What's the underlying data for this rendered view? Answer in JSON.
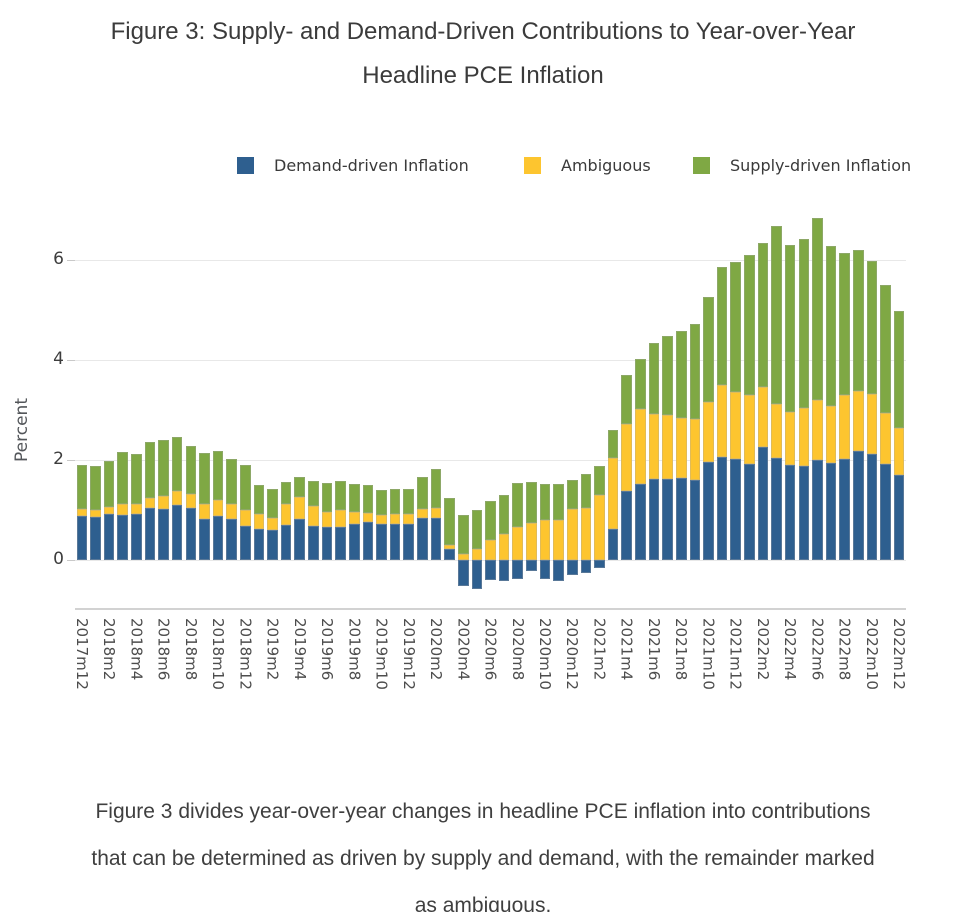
{
  "page": {
    "title": {
      "line1": "Figure 3: Supply- and Demand-Driven Contributions to Year-over-Year",
      "line2": "Headline PCE Inflation"
    },
    "caption": {
      "line1": "Figure 3 divides year-over-year changes in headline PCE inflation into contributions",
      "line2": "that can be determined as driven by supply and demand, with the remainder marked",
      "line3": "as ambiguous."
    }
  },
  "chart_data": {
    "type": "bar",
    "stacked": true,
    "title": "Figure 3: Supply- and Demand-Driven Contributions to Year-over-Year Headline PCE Inflation",
    "xlabel": "",
    "ylabel": "Percent",
    "yticks": [
      0,
      2,
      4,
      6
    ],
    "ylim": [
      -1.1,
      7.2
    ],
    "grid": "horizontal",
    "legend_position": "top",
    "xtick_every": 2,
    "categories": [
      "2017m12",
      "2018m1",
      "2018m2",
      "2018m3",
      "2018m4",
      "2018m5",
      "2018m6",
      "2018m7",
      "2018m8",
      "2018m9",
      "2018m10",
      "2018m11",
      "2018m12",
      "2019m1",
      "2019m2",
      "2019m3",
      "2019m4",
      "2019m5",
      "2019m6",
      "2019m7",
      "2019m8",
      "2019m9",
      "2019m10",
      "2019m11",
      "2019m12",
      "2020m1",
      "2020m2",
      "2020m3",
      "2020m4",
      "2020m5",
      "2020m6",
      "2020m7",
      "2020m8",
      "2020m9",
      "2020m10",
      "2020m11",
      "2020m12",
      "2021m1",
      "2021m2",
      "2021m3",
      "2021m4",
      "2021m5",
      "2021m6",
      "2021m7",
      "2021m8",
      "2021m9",
      "2021m10",
      "2021m11",
      "2021m12",
      "2022m1",
      "2022m2",
      "2022m3",
      "2022m4",
      "2022m5",
      "2022m6",
      "2022m7",
      "2022m8",
      "2022m9",
      "2022m10",
      "2022m11",
      "2022m12"
    ],
    "series": [
      {
        "name": "Demand-driven Inflation",
        "color": "#2e5f8f",
        "values": [
          0.88,
          0.87,
          0.92,
          0.9,
          0.93,
          1.05,
          1.02,
          1.1,
          1.05,
          0.83,
          0.89,
          0.82,
          0.69,
          0.63,
          0.6,
          0.7,
          0.82,
          0.69,
          0.67,
          0.67,
          0.73,
          0.77,
          0.72,
          0.72,
          0.72,
          0.85,
          0.85,
          0.23,
          -0.52,
          -0.57,
          -0.4,
          -0.41,
          -0.37,
          -0.21,
          -0.37,
          -0.41,
          -0.3,
          -0.25,
          -0.15,
          0.63,
          1.39,
          1.53,
          1.63,
          1.62,
          1.65,
          1.6,
          1.97,
          2.07,
          2.03,
          1.93,
          2.27,
          2.05,
          1.91,
          1.89,
          2.0,
          1.95,
          2.03,
          2.18,
          2.13,
          1.93,
          1.71
        ]
      },
      {
        "name": "Ambiguous",
        "color": "#fdc52f",
        "values": [
          0.14,
          0.14,
          0.15,
          0.22,
          0.2,
          0.2,
          0.26,
          0.28,
          0.27,
          0.3,
          0.31,
          0.3,
          0.31,
          0.29,
          0.25,
          0.42,
          0.45,
          0.39,
          0.3,
          0.33,
          0.24,
          0.18,
          0.18,
          0.2,
          0.21,
          0.18,
          0.2,
          0.08,
          0.12,
          0.23,
          0.4,
          0.53,
          0.67,
          0.75,
          0.8,
          0.81,
          1.03,
          1.05,
          1.31,
          1.42,
          1.34,
          1.5,
          1.3,
          1.28,
          1.2,
          1.22,
          1.2,
          1.43,
          1.34,
          1.37,
          1.2,
          1.07,
          1.05,
          1.16,
          1.2,
          1.14,
          1.27,
          1.2,
          1.2,
          1.02,
          0.94
        ]
      },
      {
        "name": "Supply-driven Inflation",
        "color": "#7fa844",
        "values": [
          0.88,
          0.87,
          0.91,
          1.05,
          1.0,
          1.12,
          1.12,
          1.09,
          0.96,
          1.02,
          0.98,
          0.91,
          0.9,
          0.59,
          0.58,
          0.45,
          0.4,
          0.51,
          0.58,
          0.59,
          0.55,
          0.55,
          0.5,
          0.51,
          0.49,
          0.64,
          0.78,
          0.94,
          0.78,
          0.78,
          0.79,
          0.77,
          0.88,
          0.82,
          0.73,
          0.71,
          0.57,
          0.67,
          0.57,
          0.56,
          0.97,
          1.0,
          1.42,
          1.58,
          1.73,
          1.9,
          2.1,
          2.37,
          2.6,
          2.8,
          2.87,
          3.56,
          3.35,
          3.37,
          3.65,
          3.19,
          2.85,
          2.82,
          2.65,
          2.55,
          2.33
        ]
      }
    ]
  }
}
